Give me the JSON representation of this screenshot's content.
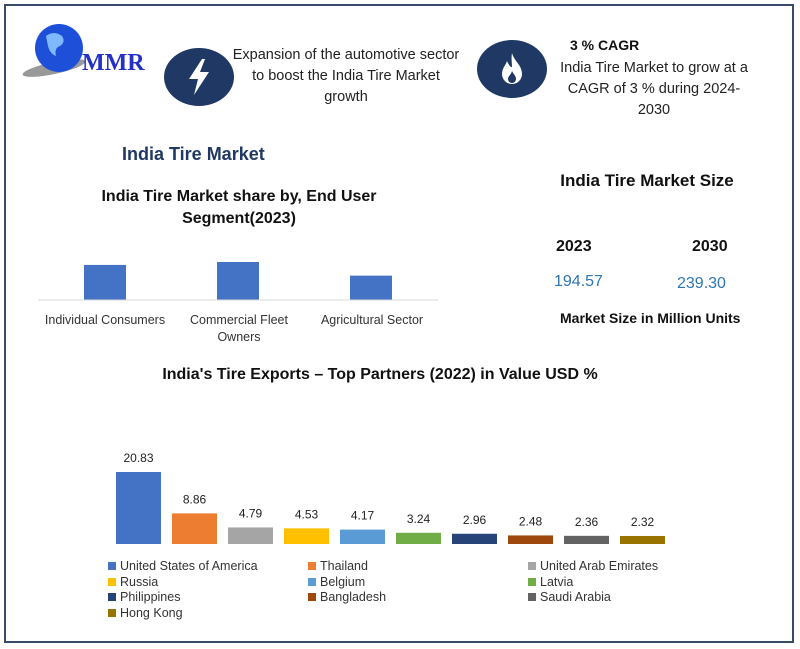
{
  "logo": {
    "text": "MMR"
  },
  "highlights": [
    {
      "icon": "lightning-bolt-icon",
      "text": "Expansion of the automotive sector to boost the India Tire Market growth"
    },
    {
      "icon": "flame-icon",
      "title": "3 % CAGR",
      "text": "India Tire Market to grow at a CAGR of 3 % during 2024-2030"
    }
  ],
  "section_title": "India Tire Market",
  "market_size": {
    "title": "India Tire Market Size",
    "years": [
      "2023",
      "2030"
    ],
    "values": [
      "194.57",
      "239.30"
    ],
    "unit_label": "Market Size in Million Units",
    "value_color": "#2e75b6"
  },
  "chart_data": [
    {
      "type": "bar",
      "title": "India Tire Market share by, End User Segment(2023)",
      "categories": [
        "Individual Consumers",
        "Commercial Fleet Owners",
        "Agricultural Sector"
      ],
      "values": [
        36,
        39,
        25
      ],
      "color": "#4472c4",
      "grid": false
    },
    {
      "type": "bar",
      "title": "India's Tire Exports – Top Partners (2022) in Value USD %",
      "categories": [
        "United States of America",
        "Thailand",
        "United Arab Emirates",
        "Russia",
        "Belgium",
        "Latvia",
        "Philippines",
        "Bangladesh",
        "Saudi Arabia",
        "Hong Kong"
      ],
      "values": [
        20.83,
        8.86,
        4.79,
        4.53,
        4.17,
        3.24,
        2.96,
        2.48,
        2.36,
        2.32
      ],
      "labels": [
        "20.83",
        "8.86",
        "4.79",
        "4.53",
        "4.17",
        "3.24",
        "2.96",
        "2.48",
        "2.36",
        "2.32"
      ],
      "colors": [
        "#4472c4",
        "#ed7d31",
        "#a5a5a5",
        "#ffc000",
        "#5b9bd5",
        "#70ad47",
        "#264478",
        "#9e480e",
        "#636363",
        "#997300"
      ],
      "legend": "bottom",
      "grid": false
    }
  ]
}
